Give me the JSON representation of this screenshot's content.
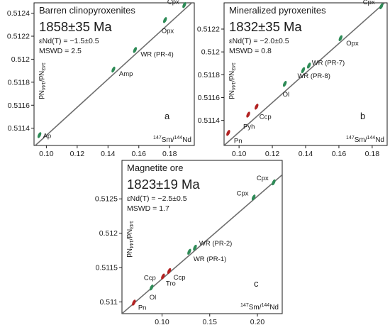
{
  "colors": {
    "isochron_line": "#6e6e6e",
    "green": "#2e8b57",
    "red": "#b22222",
    "frame": "#1a1a1a"
  },
  "chart_data": [
    {
      "type": "scatter",
      "panel_letter": "a",
      "title": "Barren clinopyroxenites",
      "age": "1858±35 Ma",
      "enrichment": "εNd(T) = −1.5±0.5",
      "mswd": "MSWD = 2.5",
      "xlabel": "147Sm/144Nd",
      "ylabel": "143Nd/144Nd",
      "xlim": [
        0.092,
        0.196
      ],
      "ylim": [
        0.51125,
        0.51249
      ],
      "xticks": [
        0.1,
        0.12,
        0.14,
        0.16,
        0.18
      ],
      "yticks": [
        0.5114,
        0.5116,
        0.5118,
        0.512,
        0.5122,
        0.5124
      ],
      "isochron": {
        "x": [
          0.092,
          0.196
        ],
        "y": [
          0.51124,
          0.51251
        ]
      },
      "points": [
        {
          "name": "Ap",
          "x": 0.0955,
          "y": 0.51134,
          "color": "green"
        },
        {
          "name": "Amp",
          "x": 0.1435,
          "y": 0.51191,
          "color": "green"
        },
        {
          "name": "WR (PR-4)",
          "x": 0.1575,
          "y": 0.51208,
          "color": "green"
        },
        {
          "name": "Opx",
          "x": 0.177,
          "y": 0.51234,
          "color": "green"
        },
        {
          "name": "Cpx",
          "x": 0.1895,
          "y": 0.51247,
          "color": "green"
        }
      ]
    },
    {
      "type": "scatter",
      "panel_letter": "b",
      "title": "Mineralized pyroxenites",
      "age": "1832±35 Ma",
      "enrichment": "εNd(T) = −2.0±0.5",
      "mswd": "MSWD = 0.8",
      "xlabel": "147Sm/144Nd",
      "ylabel": "143Nd/144Nd",
      "xlim": [
        0.091,
        0.189
      ],
      "ylim": [
        0.51118,
        0.51243
      ],
      "xticks": [
        0.1,
        0.12,
        0.14,
        0.16,
        0.18
      ],
      "yticks": [
        0.5114,
        0.5116,
        0.5118,
        0.512,
        0.5122
      ],
      "isochron": {
        "x": [
          0.091,
          0.189
        ],
        "y": [
          0.51118,
          0.51245
        ]
      },
      "points": [
        {
          "name": "Pn",
          "x": 0.0935,
          "y": 0.51129,
          "color": "red"
        },
        {
          "name": "Pyh",
          "x": 0.1055,
          "y": 0.51145,
          "color": "red"
        },
        {
          "name": "Ccp",
          "x": 0.1105,
          "y": 0.51152,
          "color": "red"
        },
        {
          "name": "Ol",
          "x": 0.1275,
          "y": 0.51172,
          "color": "green"
        },
        {
          "name": "WR (PR-8)",
          "x": 0.1385,
          "y": 0.51184,
          "color": "green"
        },
        {
          "name": "WR (PR-7)",
          "x": 0.142,
          "y": 0.51188,
          "color": "green"
        },
        {
          "name": "Opx",
          "x": 0.161,
          "y": 0.51212,
          "color": "green"
        },
        {
          "name": "Cpx",
          "x": 0.1855,
          "y": 0.5124,
          "color": "green"
        }
      ]
    },
    {
      "type": "scatter",
      "panel_letter": "c",
      "title": "Magnetite ore",
      "age": "1823±19 Ma",
      "enrichment": "εNd(T) = −2.5±0.5",
      "mswd": "MSWD = 1.7",
      "xlabel": "147Sm/144Nd",
      "ylabel": "143Nd/144Nd",
      "xlim": [
        0.058,
        0.226
      ],
      "ylim": [
        0.51083,
        0.51306
      ],
      "xticks": [
        0.1,
        0.15,
        0.2
      ],
      "yticks": [
        0.511,
        0.5115,
        0.512,
        0.5125
      ],
      "isochron": {
        "x": [
          0.058,
          0.226
        ],
        "y": [
          0.51083,
          0.51285
        ]
      },
      "points": [
        {
          "name": "Pn",
          "x": 0.0705,
          "y": 0.51099,
          "color": "red"
        },
        {
          "name": "Ol",
          "x": 0.089,
          "y": 0.51121,
          "color": "green"
        },
        {
          "name": "Tro",
          "x": 0.101,
          "y": 0.51137,
          "color": "red"
        },
        {
          "name": "Ccp",
          "x": 0.1075,
          "y": 0.51145,
          "color": "red"
        },
        {
          "name": "WR (PR-1)",
          "x": 0.1285,
          "y": 0.51173,
          "color": "green"
        },
        {
          "name": "WR (PR-2)",
          "x": 0.1345,
          "y": 0.51179,
          "color": "green"
        },
        {
          "name": "Cpx",
          "x": 0.196,
          "y": 0.51252,
          "color": "green"
        },
        {
          "name": "Cpx",
          "x": 0.217,
          "y": 0.51274,
          "color": "green"
        }
      ]
    }
  ]
}
